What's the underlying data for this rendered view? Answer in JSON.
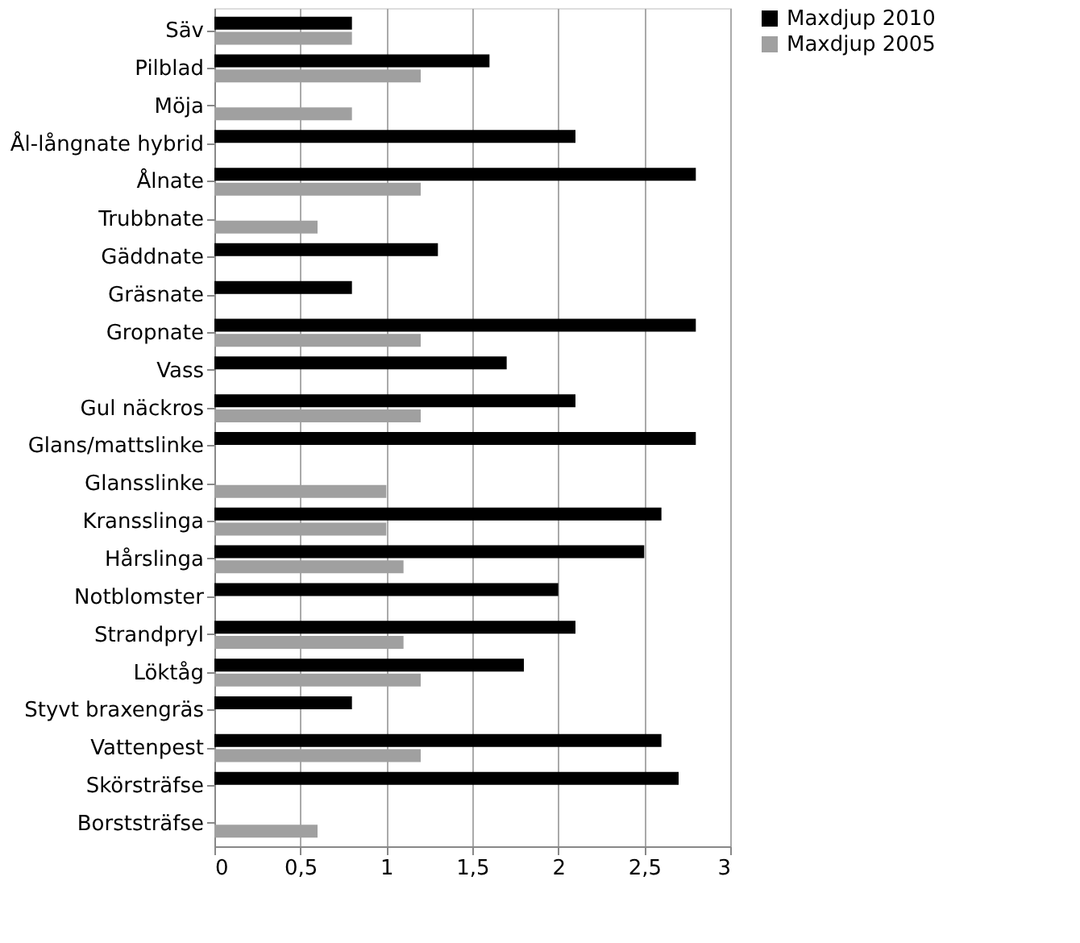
{
  "chart_data": {
    "type": "bar",
    "orientation": "horizontal",
    "categories": [
      "Säv",
      "Pilblad",
      "Möja",
      "Ål-långnate hybrid",
      "Ålnate",
      "Trubbnate",
      "Gäddnate",
      "Gräsnate",
      "Gropnate",
      "Vass",
      "Gul näckros",
      "Glans/mattslinke",
      "Glansslinke",
      "Kransslinga",
      "Hårslinga",
      "Notblomster",
      "Strandpryl",
      "Löktåg",
      "Styvt braxengräs",
      "Vattenpest",
      "Skörsträfse",
      "Borststräfse"
    ],
    "series": [
      {
        "name": "Maxdjup 2010",
        "color": "#000000",
        "values": [
          0.8,
          1.6,
          null,
          2.1,
          2.8,
          null,
          1.3,
          0.8,
          2.8,
          1.7,
          2.1,
          2.8,
          null,
          2.6,
          2.5,
          2.0,
          2.1,
          1.8,
          0.8,
          2.6,
          2.7,
          null
        ]
      },
      {
        "name": "Maxdjup 2005",
        "color": "#a0a0a0",
        "values": [
          0.8,
          1.2,
          0.8,
          null,
          1.2,
          0.6,
          null,
          null,
          1.2,
          null,
          1.2,
          null,
          1.0,
          1.0,
          1.1,
          null,
          1.1,
          1.2,
          null,
          1.2,
          null,
          0.6
        ]
      }
    ],
    "xlim": [
      0,
      3
    ],
    "xticks": [
      0,
      {
        "value": 0.5,
        "label": "0,5"
      },
      1,
      {
        "value": 1.5,
        "label": "1,5"
      },
      2,
      {
        "value": 2.5,
        "label": "2,5"
      },
      3
    ],
    "grid": "x",
    "legend": "right"
  }
}
